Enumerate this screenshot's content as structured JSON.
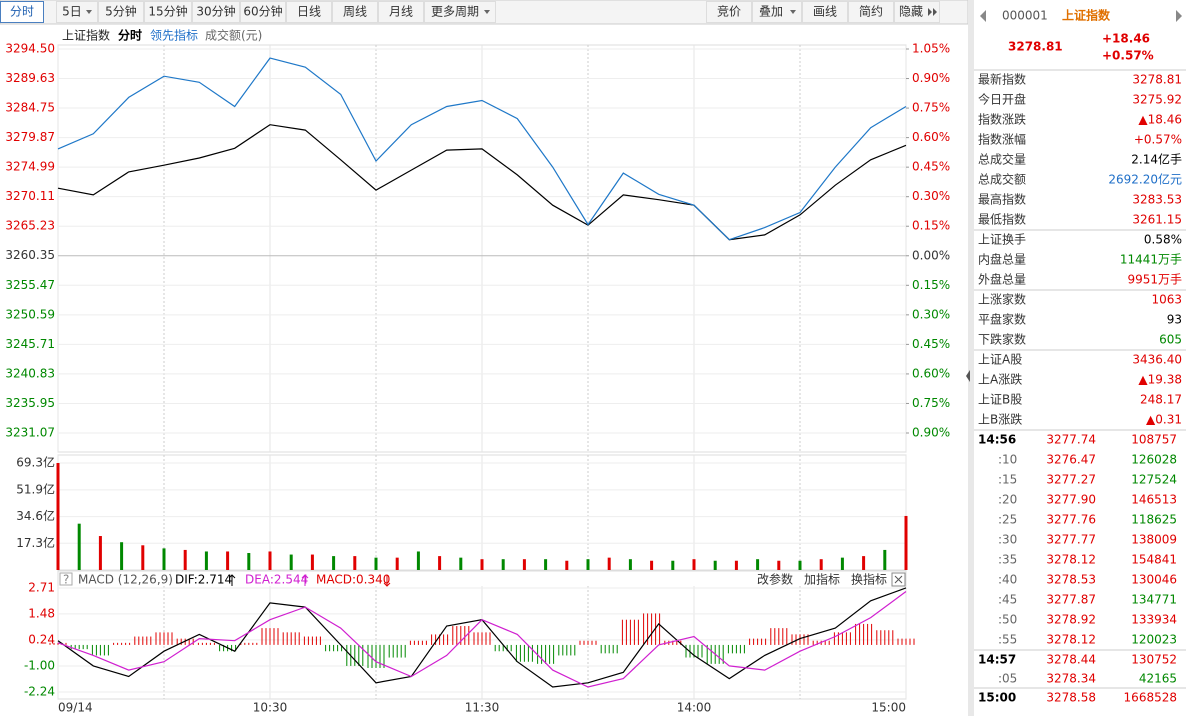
{
  "toolbar": {
    "left": [
      "分时",
      "5日",
      "5分钟",
      "15分钟",
      "30分钟",
      "60分钟",
      "日线",
      "周线",
      "月线",
      "更多周期"
    ],
    "right": [
      "竞价",
      "叠加",
      "画线",
      "简约",
      "隐藏"
    ]
  },
  "legend": {
    "name": "上证指数",
    "mode": "分时",
    "lead": "领先指标",
    "amount": "成交额(元)"
  },
  "chart_data": [
    {
      "type": "line",
      "ylim": [
        3231.07,
        3294.5
      ],
      "yticks": [
        {
          "value": 3294.5,
          "label": "3294.50"
        },
        {
          "value": 3289.63,
          "label": "3289.63"
        },
        {
          "value": 3284.75,
          "label": "3284.75"
        },
        {
          "value": 3279.87,
          "label": "3279.87"
        },
        {
          "value": 3274.99,
          "label": "3274.99"
        },
        {
          "value": 3270.11,
          "label": "3270.11"
        },
        {
          "value": 3265.23,
          "label": "3265.23"
        },
        {
          "value": 3260.35,
          "label": "3260.35"
        },
        {
          "value": 3255.47,
          "label": "3255.47"
        },
        {
          "value": 3250.59,
          "label": "3250.59"
        },
        {
          "value": 3245.71,
          "label": "3245.71"
        },
        {
          "value": 3240.83,
          "label": "3240.83"
        },
        {
          "value": 3235.95,
          "label": "3235.95"
        },
        {
          "value": 3231.07,
          "label": "3231.07"
        }
      ],
      "y2lim": [
        -0.9,
        1.05
      ],
      "y2ticks": [
        {
          "value": 1.05,
          "label": "1.05%"
        },
        {
          "value": 0.9,
          "label": "0.90%"
        },
        {
          "value": 0.75,
          "label": "0.75%"
        },
        {
          "value": 0.6,
          "label": "0.60%"
        },
        {
          "value": 0.45,
          "label": "0.45%"
        },
        {
          "value": 0.3,
          "label": "0.30%"
        },
        {
          "value": 0.15,
          "label": "0.15%"
        },
        {
          "value": 0,
          "label": "0.00%"
        },
        {
          "value": -0.15,
          "label": "0.15%"
        },
        {
          "value": -0.3,
          "label": "0.30%"
        },
        {
          "value": -0.45,
          "label": "0.45%"
        },
        {
          "value": -0.6,
          "label": "0.60%"
        },
        {
          "value": -0.75,
          "label": "0.75%"
        },
        {
          "value": -0.9,
          "label": "0.90%"
        }
      ],
      "xlim": [
        0,
        240
      ],
      "xticks": [
        {
          "value": 0,
          "label": "09/14"
        },
        {
          "value": 60,
          "label": "10:30"
        },
        {
          "value": 120,
          "label": "11:30"
        },
        {
          "value": 180,
          "label": "14:00"
        },
        {
          "value": 240,
          "label": "15:00"
        }
      ],
      "xgrid": [
        30,
        90,
        150,
        210
      ],
      "x": [
        0,
        10,
        20,
        30,
        40,
        50,
        60,
        70,
        80,
        90,
        100,
        110,
        120,
        130,
        140,
        150,
        160,
        170,
        180,
        190,
        200,
        210,
        220,
        230,
        240
      ],
      "series": [
        {
          "name": "上证指数",
          "color": "#000000",
          "values": [
            3271.5,
            3270.4,
            3274.2,
            3275.3,
            3276.5,
            3278.1,
            3282.0,
            3281.1,
            3276.2,
            3271.2,
            3274.5,
            3277.8,
            3278.0,
            3273.7,
            3268.7,
            3265.4,
            3270.4,
            3269.6,
            3268.7,
            3263.0,
            3263.8,
            3267.1,
            3272.0,
            3276.2,
            3278.6
          ]
        },
        {
          "name": "领先指标",
          "color": "#1f78c8",
          "values": [
            3278.0,
            3280.5,
            3286.5,
            3290.0,
            3289.0,
            3285.0,
            3293.0,
            3291.5,
            3287.0,
            3276.0,
            3282.0,
            3285.0,
            3286.0,
            3283.0,
            3275.0,
            3265.5,
            3274.0,
            3270.5,
            3268.7,
            3263.0,
            3265.0,
            3267.5,
            3275.0,
            3281.5,
            3285.0
          ]
        }
      ]
    },
    {
      "type": "bar",
      "ylim": [
        0,
        69.3
      ],
      "yticks": [
        {
          "value": 69.3,
          "label": "69.3亿"
        },
        {
          "value": 51.9,
          "label": "51.9亿"
        },
        {
          "value": 34.6,
          "label": "34.6亿"
        },
        {
          "value": 17.3,
          "label": "17.3亿"
        }
      ],
      "xlim": [
        0,
        240
      ],
      "x": [
        0,
        6,
        12,
        18,
        24,
        30,
        36,
        42,
        48,
        54,
        60,
        66,
        72,
        78,
        84,
        90,
        96,
        102,
        108,
        114,
        120,
        126,
        132,
        138,
        144,
        150,
        156,
        162,
        168,
        174,
        180,
        186,
        192,
        198,
        204,
        210,
        216,
        222,
        228,
        234,
        240
      ],
      "values": [
        69.3,
        30,
        22,
        18,
        16,
        14,
        13,
        12,
        12,
        11,
        12,
        10,
        10,
        9,
        9,
        8,
        8,
        12,
        9,
        8,
        7,
        7,
        7,
        7,
        6,
        7,
        8,
        7,
        6,
        6,
        7,
        6,
        6,
        7,
        6,
        6,
        7,
        8,
        9,
        13,
        35
      ]
    },
    {
      "type": "macd",
      "title": "MACD (12,26,9)",
      "dif_label": "DIF:2.714",
      "dea_label": "DEA:2.544",
      "macd_label": "MACD:0.340",
      "actions": [
        "改参数",
        "加指标",
        "换指标"
      ],
      "ylim": [
        -2.24,
        2.71
      ],
      "yticks": [
        2.71,
        1.48,
        0.24,
        {
          "value": -1,
          "label": "-1.00"
        },
        -2.24
      ],
      "xlim": [
        0,
        240
      ],
      "hist_x": [
        0,
        6,
        12,
        18,
        24,
        30,
        36,
        42,
        48,
        54,
        60,
        66,
        72,
        78,
        84,
        90,
        96,
        102,
        108,
        114,
        120,
        126,
        132,
        138,
        144,
        150,
        156,
        162,
        168,
        174,
        180,
        186,
        192,
        198,
        204,
        210,
        216,
        222,
        228,
        234,
        240
      ],
      "hist": [
        0.1,
        -0.2,
        -0.5,
        0.1,
        0.4,
        0.6,
        0.3,
        0.1,
        -0.3,
        0.1,
        0.8,
        0.6,
        0.4,
        -0.3,
        -1.0,
        -1.1,
        -0.6,
        0.2,
        0.5,
        0.9,
        0.6,
        -0.3,
        -0.8,
        -0.9,
        -0.5,
        0.2,
        -0.4,
        1.2,
        1.5,
        0.2,
        -0.6,
        -0.9,
        -0.4,
        0.3,
        0.8,
        0.5,
        0.2,
        0.6,
        1.0,
        0.7,
        0.3
      ],
      "x": [
        0,
        10,
        20,
        30,
        40,
        50,
        60,
        70,
        80,
        90,
        100,
        110,
        120,
        130,
        140,
        150,
        160,
        170,
        180,
        190,
        200,
        210,
        220,
        230,
        240
      ],
      "series": [
        {
          "name": "DIF",
          "color": "#000000",
          "values": [
            0.2,
            -1.0,
            -1.5,
            -0.3,
            0.5,
            -0.3,
            2.0,
            1.8,
            0.0,
            -1.8,
            -1.5,
            0.9,
            1.2,
            -0.8,
            -2.0,
            -1.8,
            -1.3,
            1.0,
            -0.5,
            -1.6,
            -0.5,
            0.3,
            0.8,
            2.1,
            2.714
          ]
        },
        {
          "name": "DEA",
          "color": "#d020d0",
          "values": [
            0.1,
            -0.5,
            -1.2,
            -0.8,
            0.3,
            0.2,
            1.2,
            1.8,
            0.8,
            -0.8,
            -1.5,
            -0.5,
            1.2,
            0.5,
            -1.2,
            -2.0,
            -1.6,
            0.0,
            0.4,
            -1.0,
            -1.2,
            -0.3,
            0.4,
            1.3,
            2.544
          ]
        }
      ]
    }
  ],
  "quote": {
    "code": "000001",
    "name": "上证指数",
    "price": "3278.81",
    "change": "+18.46",
    "pct": "+0.57%",
    "rows": [
      [
        "最新指数",
        "3278.81",
        "#e00000"
      ],
      [
        "今日开盘",
        "3275.92",
        "#e00000"
      ],
      [
        "指数涨跌",
        "▲18.46",
        "#e00000"
      ],
      [
        "指数涨幅",
        "+0.57%",
        "#e00000"
      ],
      [
        "总成交量",
        "2.14亿手",
        "#000000"
      ],
      [
        "总成交额",
        "2692.20亿元",
        "#1f6fc8"
      ],
      [
        "最高指数",
        "3283.53",
        "#e00000"
      ],
      [
        "最低指数",
        "3261.15",
        "#e00000"
      ],
      [
        "上证换手",
        "0.58%",
        "#000000"
      ],
      [
        "内盘总量",
        "11441万手",
        "#008800"
      ],
      [
        "外盘总量",
        "9951万手",
        "#e00000"
      ],
      [
        "上涨家数",
        "1063",
        "#e00000"
      ],
      [
        "平盘家数",
        "93",
        "#000000"
      ],
      [
        "下跌家数",
        "605",
        "#008800"
      ],
      [
        "上证A股",
        "3436.40",
        "#e00000"
      ],
      [
        "上A涨跌",
        "▲19.38",
        "#e00000"
      ],
      [
        "上证B股",
        "248.17",
        "#e00000"
      ],
      [
        "上B涨跌",
        "▲0.31",
        "#e00000"
      ]
    ],
    "ticks": [
      [
        "14:56",
        "3277.74",
        "108757",
        "#e00000"
      ],
      [
        ":10",
        "3276.47",
        "126028",
        "#008800"
      ],
      [
        ":15",
        "3277.27",
        "127524",
        "#008800"
      ],
      [
        ":20",
        "3277.90",
        "146513",
        "#e00000"
      ],
      [
        ":25",
        "3277.76",
        "118625",
        "#008800"
      ],
      [
        ":30",
        "3277.77",
        "138009",
        "#e00000"
      ],
      [
        ":35",
        "3278.12",
        "154841",
        "#e00000"
      ],
      [
        ":40",
        "3278.53",
        "130046",
        "#e00000"
      ],
      [
        ":45",
        "3277.87",
        "134771",
        "#008800"
      ],
      [
        ":50",
        "3278.92",
        "133934",
        "#e00000"
      ],
      [
        ":55",
        "3278.12",
        "120023",
        "#008800"
      ],
      [
        "14:57",
        "3278.44",
        "130752",
        "#e00000"
      ],
      [
        ":05",
        "3278.34",
        "42165",
        "#008800"
      ],
      [
        "15:00",
        "3278.58",
        "1668528",
        "#e00000"
      ]
    ]
  }
}
